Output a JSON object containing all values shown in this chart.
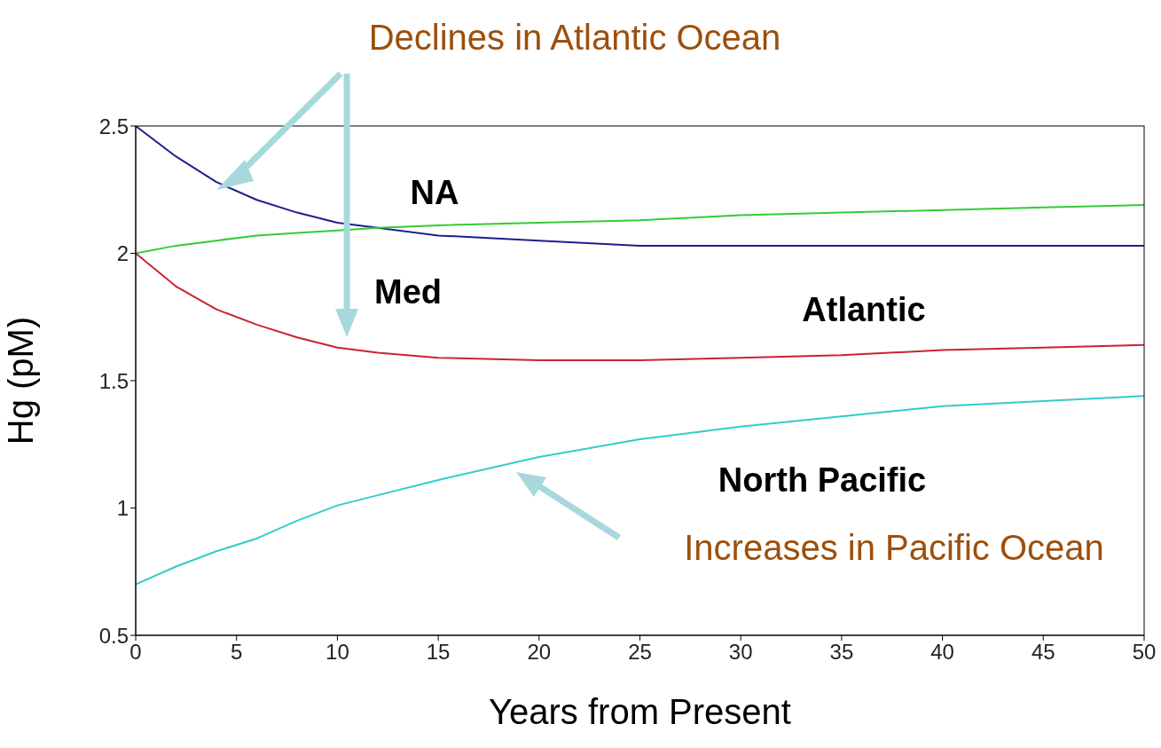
{
  "chart_data": {
    "type": "line",
    "xlabel": "Years from Present",
    "ylabel": "Hg (pM)",
    "x": [
      0,
      2,
      4,
      6,
      8,
      10,
      12,
      15,
      20,
      25,
      30,
      35,
      40,
      45,
      50
    ],
    "series": [
      {
        "color": "#1f1f8f",
        "values": [
          2.5,
          2.38,
          2.28,
          2.21,
          2.16,
          2.12,
          2.1,
          2.07,
          2.05,
          2.03,
          2.03,
          2.03,
          2.03,
          2.03,
          2.03
        ]
      },
      {
        "color": "#33cc33",
        "values": [
          2.0,
          2.03,
          2.05,
          2.07,
          2.08,
          2.09,
          2.1,
          2.11,
          2.12,
          2.13,
          2.15,
          2.16,
          2.17,
          2.18,
          2.19
        ]
      },
      {
        "color": "#cc2233",
        "values": [
          2.0,
          1.87,
          1.78,
          1.72,
          1.67,
          1.63,
          1.61,
          1.59,
          1.58,
          1.58,
          1.59,
          1.6,
          1.62,
          1.63,
          1.64
        ]
      },
      {
        "color": "#33cccc",
        "values": [
          0.7,
          0.77,
          0.83,
          0.88,
          0.95,
          1.01,
          1.05,
          1.11,
          1.2,
          1.27,
          1.32,
          1.36,
          1.4,
          1.42,
          1.44
        ]
      }
    ],
    "xlim": [
      0,
      50
    ],
    "xticks": [
      0,
      5,
      10,
      15,
      20,
      25,
      30,
      35,
      40,
      45,
      50
    ],
    "ylim": [
      0.5,
      2.5
    ],
    "yticks": [
      0.5,
      1,
      1.5,
      2,
      2.5
    ],
    "marker": "none",
    "line_style": "solid",
    "grid": false,
    "legend": false,
    "annotations": [
      "Declines in Atlantic Ocean",
      "Increases in Pacific Ocean",
      "NA",
      "Med",
      "Atlantic",
      "North Pacific"
    ]
  }
}
